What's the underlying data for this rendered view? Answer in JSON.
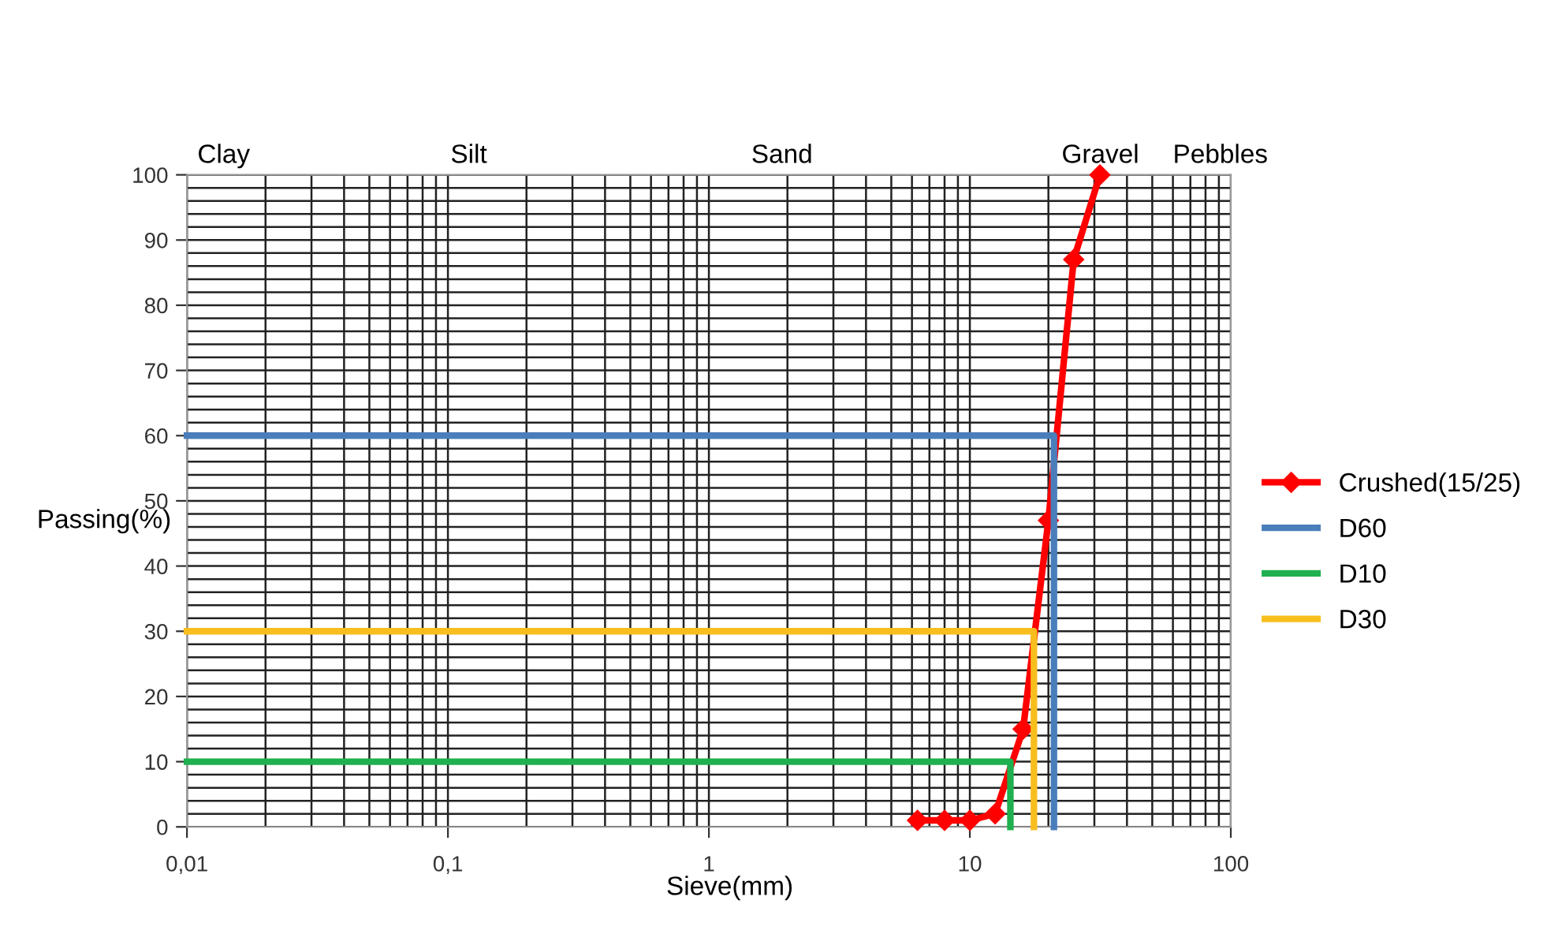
{
  "chart_data": {
    "type": "line",
    "xlabel": "Sieve(mm)",
    "ylabel": "Passing(%)",
    "log": "x",
    "xlim": [
      0.01,
      100
    ],
    "xticks": [
      {
        "value": 0.01,
        "label": "0,01"
      },
      {
        "value": 0.02,
        "label": null
      },
      {
        "value": 0.03,
        "label": null
      },
      {
        "value": 0.04,
        "label": null
      },
      {
        "value": 0.05,
        "label": null
      },
      {
        "value": 0.06,
        "label": null
      },
      {
        "value": 0.07,
        "label": null
      },
      {
        "value": 0.08,
        "label": null
      },
      {
        "value": 0.09,
        "label": null
      },
      {
        "value": 0.1,
        "label": "0,1"
      },
      {
        "value": 0.2,
        "label": null
      },
      {
        "value": 0.3,
        "label": null
      },
      {
        "value": 0.4,
        "label": null
      },
      {
        "value": 0.5,
        "label": null
      },
      {
        "value": 0.6,
        "label": null
      },
      {
        "value": 0.7,
        "label": null
      },
      {
        "value": 0.8,
        "label": null
      },
      {
        "value": 0.9,
        "label": null
      },
      1,
      {
        "value": 2,
        "label": null
      },
      {
        "value": 3,
        "label": null
      },
      {
        "value": 4,
        "label": null
      },
      {
        "value": 5,
        "label": null
      },
      {
        "value": 6,
        "label": null
      },
      {
        "value": 7,
        "label": null
      },
      {
        "value": 8,
        "label": null
      },
      {
        "value": 9,
        "label": null
      },
      10,
      {
        "value": 20,
        "label": null
      },
      {
        "value": 30,
        "label": null
      },
      {
        "value": 40,
        "label": null
      },
      {
        "value": 50,
        "label": null
      },
      {
        "value": 60,
        "label": null
      },
      {
        "value": 70,
        "label": null
      },
      {
        "value": 80,
        "label": null
      },
      {
        "value": 90,
        "label": null
      },
      100
    ],
    "ylim": [
      0,
      100
    ],
    "yticks": [
      0,
      {
        "value": 2,
        "label": null
      },
      {
        "value": 4,
        "label": null
      },
      {
        "value": 6,
        "label": null
      },
      {
        "value": 8,
        "label": null
      },
      10,
      {
        "value": 12,
        "label": null
      },
      {
        "value": 14,
        "label": null
      },
      {
        "value": 16,
        "label": null
      },
      {
        "value": 18,
        "label": null
      },
      20,
      {
        "value": 22,
        "label": null
      },
      {
        "value": 24,
        "label": null
      },
      {
        "value": 26,
        "label": null
      },
      {
        "value": 28,
        "label": null
      },
      30,
      {
        "value": 32,
        "label": null
      },
      {
        "value": 34,
        "label": null
      },
      {
        "value": 36,
        "label": null
      },
      {
        "value": 38,
        "label": null
      },
      40,
      {
        "value": 42,
        "label": null
      },
      {
        "value": 44,
        "label": null
      },
      {
        "value": 46,
        "label": null
      },
      {
        "value": 48,
        "label": null
      },
      50,
      {
        "value": 52,
        "label": null
      },
      {
        "value": 54,
        "label": null
      },
      {
        "value": 56,
        "label": null
      },
      {
        "value": 58,
        "label": null
      },
      60,
      {
        "value": 62,
        "label": null
      },
      {
        "value": 64,
        "label": null
      },
      {
        "value": 66,
        "label": null
      },
      {
        "value": 68,
        "label": null
      },
      70,
      {
        "value": 72,
        "label": null
      },
      {
        "value": 74,
        "label": null
      },
      {
        "value": 76,
        "label": null
      },
      {
        "value": 78,
        "label": null
      },
      80,
      {
        "value": 82,
        "label": null
      },
      {
        "value": 84,
        "label": null
      },
      {
        "value": 86,
        "label": null
      },
      {
        "value": 88,
        "label": null
      },
      90,
      {
        "value": 92,
        "label": null
      },
      {
        "value": 94,
        "label": null
      },
      {
        "value": 96,
        "label": null
      },
      {
        "value": 98,
        "label": null
      },
      100
    ],
    "grid": true,
    "legend": "right",
    "series": [
      {
        "name": "Crushed(15/25)",
        "color": "#ff0000",
        "marker": "diamond",
        "x": [
          6.3,
          8,
          10,
          12.5,
          16,
          20,
          25,
          31.5
        ],
        "values": [
          1,
          1,
          1,
          2,
          15,
          47,
          87,
          100
        ]
      },
      {
        "name": "D60",
        "color": "#4a7ebb",
        "x": [
          0.01,
          21,
          21
        ],
        "values": [
          60,
          60,
          0
        ]
      },
      {
        "name": "D10",
        "color": "#1fb04f",
        "x": [
          0.01,
          14.3,
          14.3
        ],
        "values": [
          10,
          10,
          0
        ]
      },
      {
        "name": "D30",
        "color": "#f7be1e",
        "x": [
          0.01,
          17.6,
          17.6
        ],
        "values": [
          30,
          30,
          0
        ]
      }
    ],
    "annotations": [
      "Clay",
      "Silt",
      "Sand",
      "Gravel",
      "Pebbles"
    ]
  }
}
